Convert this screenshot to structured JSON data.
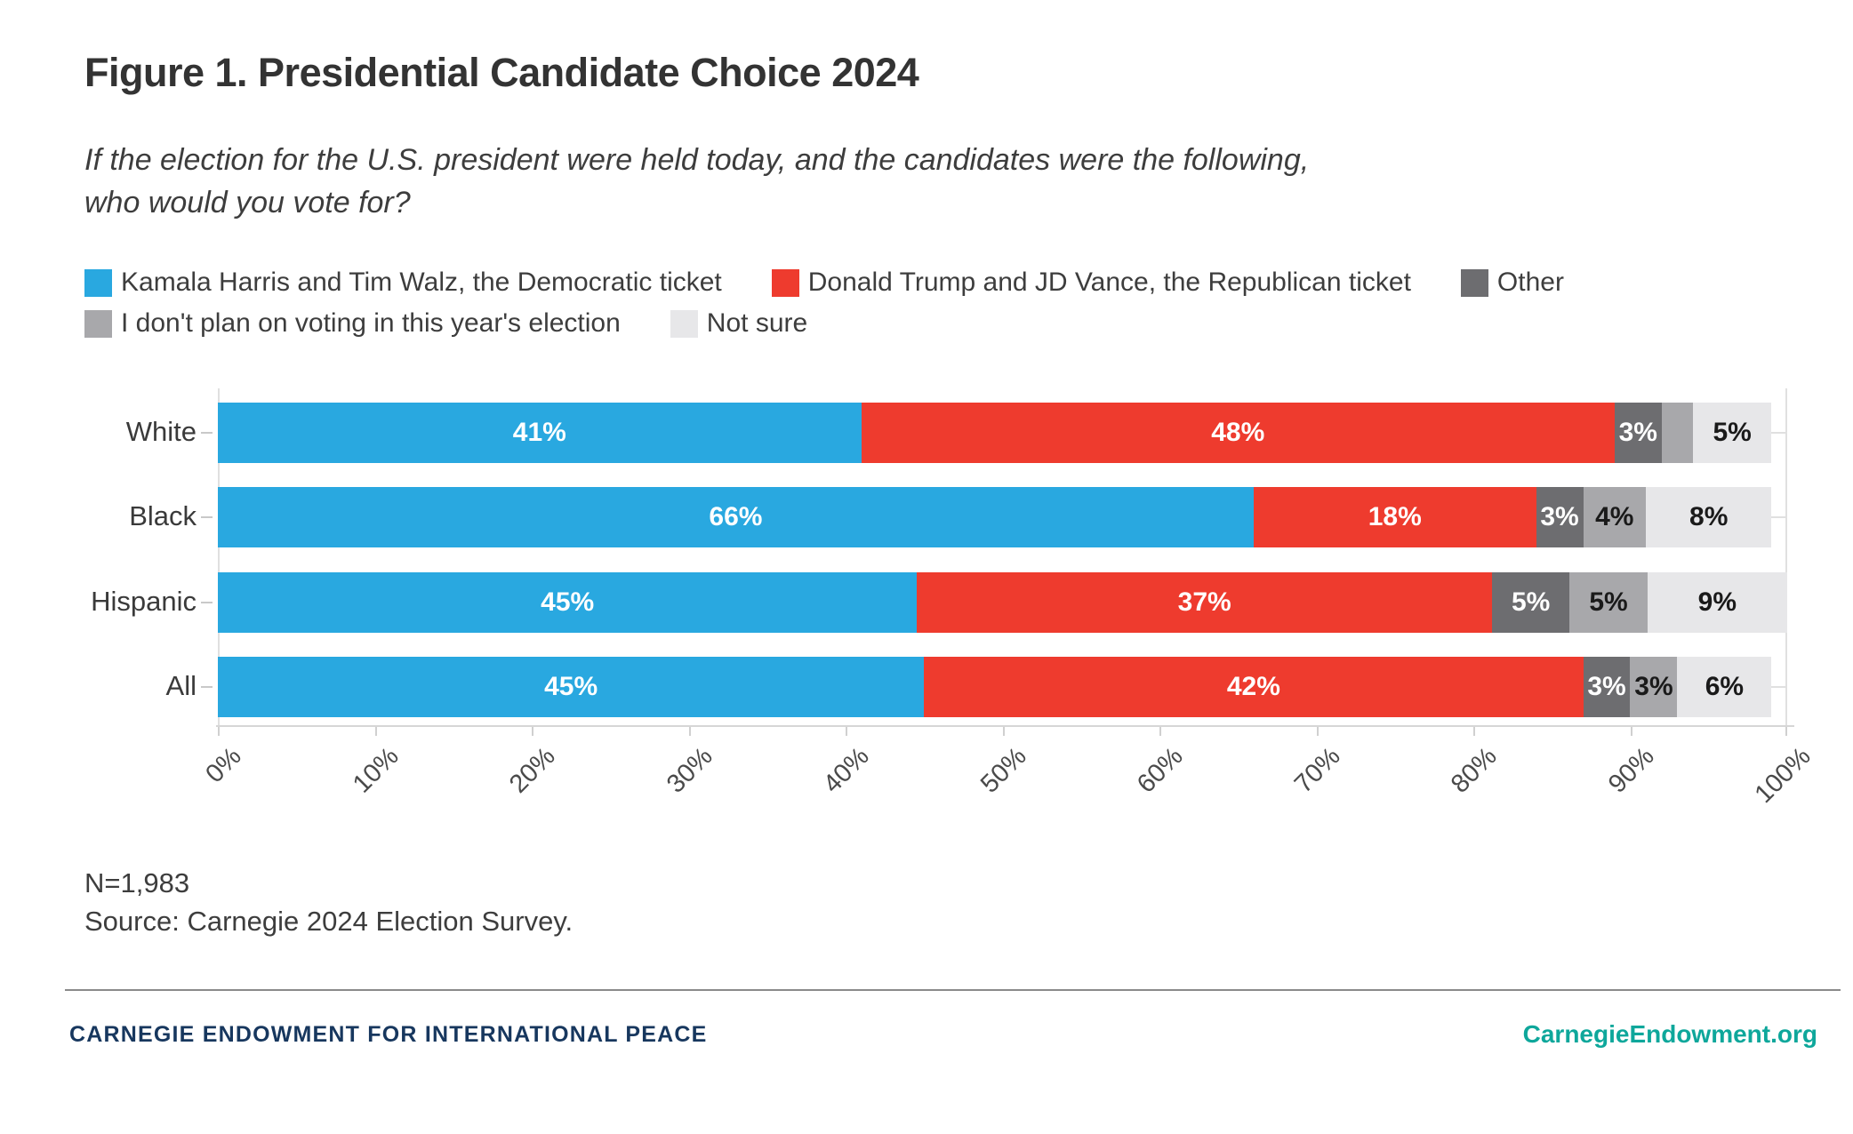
{
  "figure": {
    "title": "Figure 1. Presidential Candidate Choice 2024",
    "subtitle_line1": "If the election for the U.S. president were held today, and the candidates were the following,",
    "subtitle_line2": "who would you vote for?",
    "note_n": "N=1,983",
    "source": "Source: Carnegie 2024 Election Survey."
  },
  "footer": {
    "org": "CARNEGIE ENDOWMENT FOR INTERNATIONAL PEACE",
    "website": "CarnegieEndowment.org"
  },
  "colors": {
    "harris_blue": "#29A8E0",
    "trump_red": "#EE3B2E",
    "other_darkgray": "#6D6D70",
    "novote_gray": "#A8A8AB",
    "notsure_lightgray": "#E7E7E9",
    "navy": "#17375E",
    "teal": "#0EA79B"
  },
  "chart_data": {
    "type": "bar",
    "orientation": "horizontal_stacked",
    "title": "Figure 1. Presidential Candidate Choice 2024",
    "categories": [
      "White",
      "Black",
      "Hispanic",
      "All"
    ],
    "series": [
      {
        "name": "Kamala Harris and Tim Walz, the Democratic ticket",
        "color": "#29A8E0",
        "label_color": "#ffffff",
        "values": [
          41,
          66,
          45,
          45
        ]
      },
      {
        "name": "Donald Trump and JD Vance, the Republican ticket",
        "color": "#EE3B2E",
        "label_color": "#ffffff",
        "values": [
          48,
          18,
          37,
          42
        ]
      },
      {
        "name": "Other",
        "color": "#6D6D70",
        "label_color": "#ffffff",
        "values": [
          3,
          3,
          5,
          3
        ]
      },
      {
        "name": "I don't plan on voting in this year's election",
        "color": "#A8A8AB",
        "label_color": "#1a1a1a",
        "values": [
          2,
          4,
          5,
          3
        ]
      },
      {
        "name": "Not sure",
        "color": "#E7E7E9",
        "label_color": "#1a1a1a",
        "values": [
          5,
          8,
          9,
          6
        ]
      }
    ],
    "shown_labels": [
      [
        "41%",
        "48%",
        "3%",
        "",
        "5%"
      ],
      [
        "66%",
        "18%",
        "3%",
        "4%",
        "8%"
      ],
      [
        "45%",
        "37%",
        "5%",
        "5%",
        "9%"
      ],
      [
        "45%",
        "42%",
        "3%",
        "3%",
        "6%"
      ]
    ],
    "x_ticks": [
      "0%",
      "10%",
      "20%",
      "30%",
      "40%",
      "50%",
      "60%",
      "70%",
      "80%",
      "90%",
      "100%"
    ],
    "xlim": [
      0,
      100
    ],
    "grid": "x_edges_only",
    "legend_position": "top",
    "legend_rows": [
      [
        0,
        1,
        2
      ],
      [
        3,
        4
      ]
    ]
  }
}
